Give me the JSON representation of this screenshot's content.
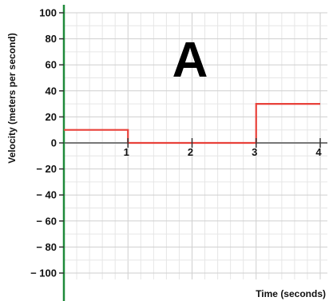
{
  "chart_data": {
    "type": "line",
    "annotation": "A",
    "xlabel": "Time (seconds)",
    "ylabel": "Velocity (meters per second)",
    "xlim": [
      0,
      4
    ],
    "ylim": [
      -100,
      100
    ],
    "x_ticks": [
      1,
      2,
      3,
      4
    ],
    "x_tick_labels": [
      "1",
      "2",
      "3",
      "4"
    ],
    "y_ticks": [
      100,
      80,
      60,
      40,
      20,
      0,
      -20,
      -40,
      -60,
      -80,
      -100
    ],
    "y_tick_labels": [
      "100",
      "80",
      "60",
      "40",
      "20",
      "0",
      "− 20",
      "− 40",
      "− 60",
      "− 80",
      "− 100"
    ],
    "grid": true,
    "series": [
      {
        "step": true,
        "x": [
          0,
          1,
          1,
          3,
          3,
          4
        ],
        "y": [
          10,
          10,
          0,
          0,
          30,
          30
        ]
      }
    ],
    "colors": {
      "series": "#e8413a",
      "y_axis": "#1f8a3a",
      "x_axis": "#777777",
      "grid_minor": "#e6e6e6",
      "grid_major": "#cfcfcf"
    }
  }
}
